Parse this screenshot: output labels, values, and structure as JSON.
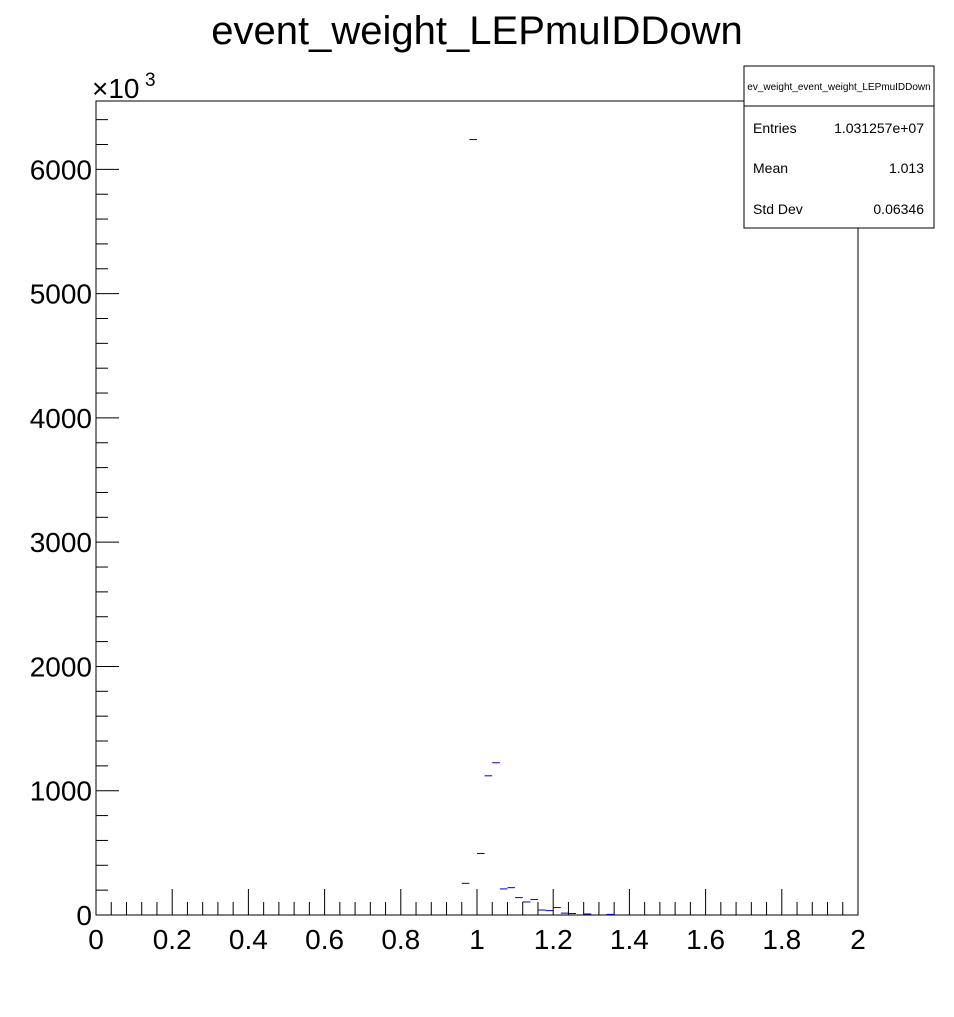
{
  "chart_data": {
    "type": "histogram",
    "title": "event_weight_LEPmuIDDown",
    "xlabel": "",
    "ylabel": "",
    "xlim": [
      0,
      2
    ],
    "ylim": [
      0,
      6550000
    ],
    "y_multiplier_label": "×10",
    "y_multiplier_exponent": "3",
    "x_ticks": [
      {
        "value": 0,
        "label": "0"
      },
      {
        "value": 0.2,
        "label": "0.2"
      },
      {
        "value": 0.4,
        "label": "0.4"
      },
      {
        "value": 0.6,
        "label": "0.6"
      },
      {
        "value": 0.8,
        "label": "0.8"
      },
      {
        "value": 1,
        "label": "1"
      },
      {
        "value": 1.2,
        "label": "1.2"
      },
      {
        "value": 1.4,
        "label": "1.4"
      },
      {
        "value": 1.6,
        "label": "1.6"
      },
      {
        "value": 1.8,
        "label": "1.8"
      },
      {
        "value": 2,
        "label": "2"
      }
    ],
    "y_ticks": [
      {
        "value": 0,
        "label": "0"
      },
      {
        "value": 1000000,
        "label": "1000"
      },
      {
        "value": 2000000,
        "label": "2000"
      },
      {
        "value": 3000000,
        "label": "3000"
      },
      {
        "value": 4000000,
        "label": "4000"
      },
      {
        "value": 5000000,
        "label": "5000"
      },
      {
        "value": 6000000,
        "label": "6000"
      }
    ],
    "bin_width": 0.02,
    "bins": [
      {
        "x": 0.97,
        "y": 255000
      },
      {
        "x": 0.99,
        "y": 6240000
      },
      {
        "x": 1.01,
        "y": 495000
      },
      {
        "x": 1.03,
        "y": 1120000
      },
      {
        "x": 1.05,
        "y": 1225000
      },
      {
        "x": 1.07,
        "y": 210000
      },
      {
        "x": 1.09,
        "y": 220000
      },
      {
        "x": 1.11,
        "y": 140000
      },
      {
        "x": 1.13,
        "y": 105000
      },
      {
        "x": 1.15,
        "y": 125000
      },
      {
        "x": 1.17,
        "y": 40000
      },
      {
        "x": 1.19,
        "y": 35000
      },
      {
        "x": 1.21,
        "y": 60000
      },
      {
        "x": 1.23,
        "y": 15000
      },
      {
        "x": 1.25,
        "y": 12000
      },
      {
        "x": 1.29,
        "y": 8000
      },
      {
        "x": 1.35,
        "y": 5000
      }
    ],
    "line_color": "#0000cc",
    "stats": {
      "name": "ev_weight_event_weight_LEPmuIDDown",
      "rows": [
        {
          "label": "Entries",
          "value": "1.031257e+07"
        },
        {
          "label": "Mean",
          "value": "1.013"
        },
        {
          "label": "Std Dev",
          "value": "0.06346"
        }
      ]
    }
  }
}
